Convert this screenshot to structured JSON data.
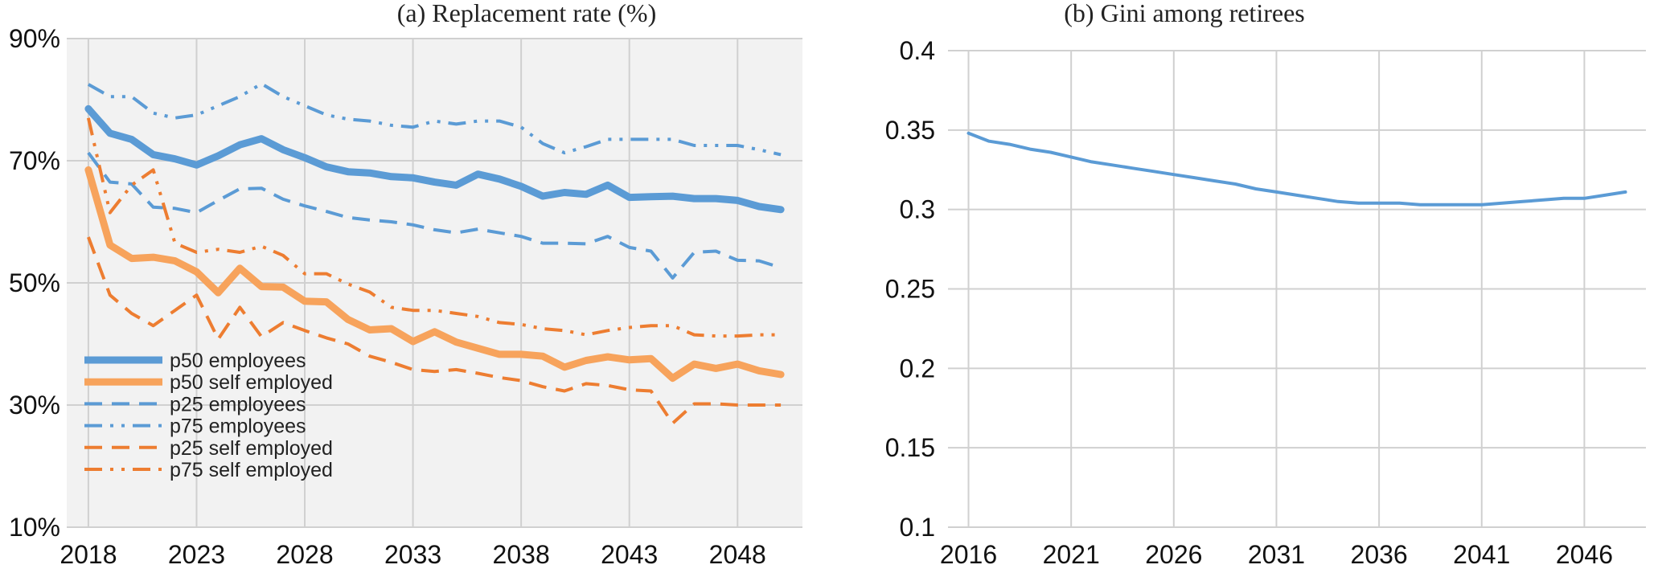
{
  "chart_data": [
    {
      "type": "line",
      "title": "(a) Replacement rate (%)",
      "xlabel": "",
      "ylabel": "",
      "xlim": [
        2017,
        2051
      ],
      "ylim": [
        10,
        90
      ],
      "x_ticks": [
        2018,
        2023,
        2028,
        2033,
        2038,
        2043,
        2048
      ],
      "y_ticks": [
        10,
        30,
        50,
        70,
        90
      ],
      "y_tick_labels": [
        "10%",
        "30%",
        "50%",
        "70%",
        "90%"
      ],
      "grid": true,
      "background": "#f2f2f2",
      "legend_position": "bottom-left",
      "x": [
        2018,
        2019,
        2020,
        2021,
        2022,
        2023,
        2024,
        2025,
        2026,
        2027,
        2028,
        2029,
        2030,
        2031,
        2032,
        2033,
        2034,
        2035,
        2036,
        2037,
        2038,
        2039,
        2040,
        2041,
        2042,
        2043,
        2044,
        2045,
        2046,
        2047,
        2048,
        2049,
        2050
      ],
      "series": [
        {
          "name": "p50 employees",
          "color": "#5b9bd5",
          "style": "solid",
          "width": 9,
          "values": [
            78.5,
            74.5,
            73.5,
            71,
            70.3,
            69.3,
            70.8,
            72.6,
            73.6,
            71.8,
            70.5,
            69,
            68.2,
            68,
            67.4,
            67.2,
            66.5,
            66,
            67.8,
            67,
            65.8,
            64.2,
            64.8,
            64.5,
            66,
            64,
            64.1,
            64.2,
            63.8,
            63.8,
            63.5,
            62.5,
            62
          ]
        },
        {
          "name": "p50 self employed",
          "color": "#f7a35c",
          "style": "solid",
          "width": 9,
          "values": [
            68.5,
            56.2,
            54,
            54.2,
            53.6,
            51.8,
            48.4,
            52.4,
            49.4,
            49.3,
            47,
            46.9,
            44,
            42.3,
            42.5,
            40.4,
            42,
            40.3,
            39.3,
            38.3,
            38.3,
            38,
            36.2,
            37.3,
            37.9,
            37.4,
            37.6,
            34.4,
            36.7,
            36,
            36.7,
            35.6,
            35
          ]
        },
        {
          "name": "p25 employees",
          "color": "#5b9bd5",
          "style": "dash",
          "width": 4,
          "values": [
            71.3,
            66.5,
            66.2,
            62.4,
            62.2,
            61.5,
            63.5,
            65.4,
            65.5,
            63.7,
            62.6,
            61.7,
            60.7,
            60.3,
            60,
            59.5,
            58.7,
            58.2,
            58.8,
            58.2,
            57.6,
            56.5,
            56.5,
            56.4,
            57.6,
            55.8,
            55.2,
            50.8,
            55,
            55.2,
            53.7,
            53.6,
            52.5
          ]
        },
        {
          "name": "p75 employees",
          "color": "#5b9bd5",
          "style": "dashdotdot",
          "width": 4,
          "values": [
            82.5,
            80.5,
            80.5,
            77.8,
            77,
            77.5,
            79,
            80.5,
            82.6,
            80.5,
            79,
            77.5,
            76.8,
            76.5,
            75.8,
            75.5,
            76.5,
            76,
            76.5,
            76.5,
            75.5,
            72.8,
            71.3,
            72.3,
            73.5,
            73.5,
            73.5,
            73.5,
            72.5,
            72.5,
            72.5,
            71.8,
            71
          ]
        },
        {
          "name": "p25 self employed",
          "color": "#ed7d31",
          "style": "dash",
          "width": 4,
          "values": [
            57.5,
            48,
            45,
            43,
            45.5,
            48,
            40.8,
            46,
            41.2,
            43.5,
            42.2,
            41,
            40,
            38,
            37,
            35.8,
            35.5,
            35.8,
            35.2,
            34.5,
            34,
            33,
            32.3,
            33.5,
            33.2,
            32.5,
            32.3,
            27,
            30.2,
            30.2,
            30,
            30,
            30
          ]
        },
        {
          "name": "p75 self employed",
          "color": "#ed7d31",
          "style": "dashdotdot",
          "width": 4,
          "values": [
            77,
            61.5,
            66,
            68.5,
            56.5,
            55,
            55.5,
            55,
            56,
            54.5,
            51.5,
            51.5,
            49.8,
            48.5,
            46,
            45.5,
            45.5,
            45,
            44.5,
            43.5,
            43.2,
            42.5,
            42.2,
            41.5,
            42.2,
            42.7,
            43,
            43,
            41.5,
            41.3,
            41.3,
            41.5,
            41.5
          ]
        }
      ]
    },
    {
      "type": "line",
      "title": "(b) Gini among retirees",
      "xlabel": "",
      "ylabel": "",
      "xlim": [
        2015,
        2049
      ],
      "ylim": [
        0.1,
        0.4
      ],
      "x_ticks": [
        2016,
        2021,
        2026,
        2031,
        2036,
        2041,
        2046
      ],
      "y_ticks": [
        0.1,
        0.15,
        0.2,
        0.25,
        0.3,
        0.35,
        0.4
      ],
      "y_tick_labels": [
        "0.1",
        "0.15",
        "0.2",
        "0.25",
        "0.3",
        "0.35",
        "0.4"
      ],
      "grid": true,
      "background": "#ffffff",
      "x": [
        2016,
        2017,
        2018,
        2019,
        2020,
        2021,
        2022,
        2023,
        2024,
        2025,
        2026,
        2027,
        2028,
        2029,
        2030,
        2031,
        2032,
        2033,
        2034,
        2035,
        2036,
        2037,
        2038,
        2039,
        2040,
        2041,
        2042,
        2043,
        2044,
        2045,
        2046,
        2047,
        2048
      ],
      "series": [
        {
          "color": "#5b9bd5",
          "style": "solid",
          "width": 4,
          "values": [
            0.348,
            0.343,
            0.341,
            0.338,
            0.336,
            0.333,
            0.33,
            0.328,
            0.326,
            0.324,
            0.322,
            0.32,
            0.318,
            0.316,
            0.313,
            0.311,
            0.309,
            0.307,
            0.305,
            0.304,
            0.304,
            0.304,
            0.303,
            0.303,
            0.303,
            0.303,
            0.304,
            0.305,
            0.306,
            0.307,
            0.307,
            0.309,
            0.311
          ]
        }
      ]
    }
  ]
}
